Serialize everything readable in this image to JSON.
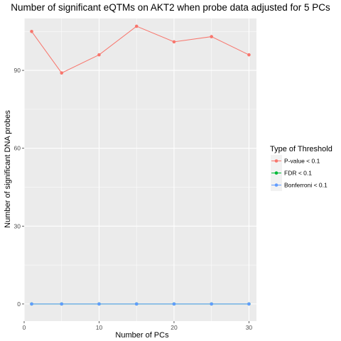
{
  "chart_data": {
    "type": "line",
    "title": "Number of significant eQTMs on AKT2 when probe data adjusted for 5 PCs",
    "xlabel": "Number of PCs",
    "ylabel": "Number of significant DNA probes",
    "x": [
      1,
      5,
      10,
      15,
      20,
      25,
      30
    ],
    "xlim": [
      0,
      31
    ],
    "ylim": [
      -6.6,
      110
    ],
    "xticks": [
      0,
      10,
      20,
      30
    ],
    "yticks": [
      0,
      30,
      60,
      90
    ],
    "xtick_labels": [
      "0",
      "10",
      "20",
      "30"
    ],
    "ytick_labels": [
      "0",
      "30",
      "60",
      "90"
    ],
    "grid": true,
    "legend": {
      "title": "Type of Threshold",
      "placement": "right"
    },
    "series": [
      {
        "name": "P-value < 0.1",
        "color": "#F8766D",
        "values": [
          105,
          89,
          96,
          107,
          101,
          103,
          96
        ]
      },
      {
        "name": "FDR < 0.1",
        "color": "#00BA38",
        "values": [
          0,
          0,
          0,
          0,
          0,
          0,
          0
        ]
      },
      {
        "name": "Bonferroni < 0.1",
        "color": "#619CFF",
        "values": [
          0,
          0,
          0,
          0,
          0,
          0,
          0
        ]
      }
    ],
    "panel_background": "#EBEBEB",
    "grid_color": "#FFFFFF"
  }
}
